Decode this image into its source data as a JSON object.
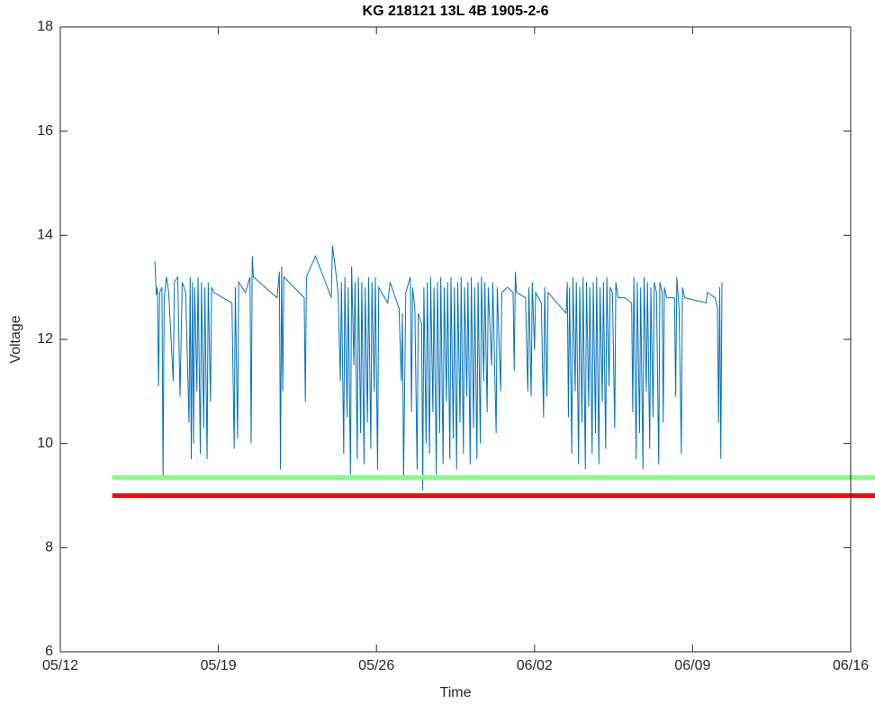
{
  "chart_data": {
    "type": "line",
    "title": "KG 218121 13L 4B 1905-2-6",
    "xlabel": "Time",
    "ylabel": "Voltage",
    "xlim": [
      0,
      35
    ],
    "xticks": [
      {
        "value": 0,
        "label": "05/12"
      },
      {
        "value": 7,
        "label": "05/19"
      },
      {
        "value": 14,
        "label": "05/26"
      },
      {
        "value": 21,
        "label": "06/02"
      },
      {
        "value": 28,
        "label": "06/09"
      },
      {
        "value": 35,
        "label": "06/16"
      }
    ],
    "ylim": [
      6,
      18
    ],
    "yticks": [
      6,
      8,
      10,
      12,
      14,
      16,
      18
    ],
    "series": [
      {
        "color": "#0072bd",
        "width": 1,
        "x": [
          4.19,
          4.25,
          4.3,
          4.35,
          4.4,
          4.5,
          4.55,
          4.6,
          4.7,
          4.8,
          5.0,
          5.05,
          5.2,
          5.3,
          5.4,
          5.55,
          5.7,
          5.75,
          5.8,
          5.85,
          5.9,
          5.95,
          6.05,
          6.1,
          6.2,
          6.25,
          6.35,
          6.4,
          6.5,
          6.55,
          6.65,
          6.7,
          6.8,
          7.6,
          7.7,
          7.75,
          7.85,
          7.9,
          8.2,
          8.4,
          8.45,
          8.5,
          8.55,
          9.6,
          9.7,
          9.75,
          9.8,
          9.85,
          9.9,
          10.8,
          10.85,
          10.9,
          11.3,
          12.0,
          12.05,
          12.2,
          12.3,
          12.4,
          12.45,
          12.55,
          12.6,
          12.7,
          12.75,
          12.85,
          12.9,
          13.0,
          13.05,
          13.15,
          13.2,
          13.3,
          13.35,
          13.45,
          13.5,
          13.6,
          13.65,
          13.75,
          13.8,
          13.9,
          13.95,
          14.05,
          14.1,
          14.5,
          14.6,
          15.0,
          15.1,
          15.15,
          15.2,
          15.3,
          15.5,
          15.55,
          15.6,
          15.7,
          15.8,
          15.85,
          16.0,
          16.05,
          16.1,
          16.2,
          16.25,
          16.35,
          16.4,
          16.5,
          16.55,
          16.65,
          16.7,
          16.8,
          16.85,
          16.95,
          17.0,
          17.1,
          17.15,
          17.25,
          17.3,
          17.4,
          17.45,
          17.55,
          17.6,
          17.7,
          17.75,
          17.85,
          17.9,
          18.0,
          18.05,
          18.15,
          18.2,
          18.3,
          18.35,
          18.45,
          18.5,
          18.6,
          18.65,
          18.75,
          18.8,
          18.9,
          18.95,
          19.1,
          19.15,
          19.3,
          19.35,
          19.5,
          19.55,
          19.8,
          20.05,
          20.1,
          20.15,
          20.2,
          20.6,
          20.7,
          20.75,
          20.85,
          20.9,
          21.0,
          21.05,
          21.3,
          21.4,
          21.45,
          21.55,
          21.6,
          21.8,
          22.4,
          22.45,
          22.5,
          22.55,
          22.65,
          22.7,
          22.8,
          22.85,
          22.95,
          23.0,
          23.1,
          23.15,
          23.25,
          23.3,
          23.4,
          23.45,
          23.55,
          23.6,
          23.7,
          23.75,
          23.85,
          23.9,
          24.0,
          24.05,
          24.15,
          24.2,
          24.3,
          24.35,
          24.45,
          24.55,
          24.6,
          24.7,
          25.0,
          25.3,
          25.35,
          25.4,
          25.5,
          25.55,
          25.65,
          25.7,
          25.8,
          25.85,
          25.95,
          26.0,
          26.1,
          26.15,
          26.25,
          26.3,
          26.4,
          26.5,
          26.55,
          26.65,
          26.7,
          26.75,
          26.85,
          27.2,
          27.25,
          27.3,
          27.4,
          27.5,
          27.55,
          27.65,
          28.6,
          28.65,
          29.0,
          29.1,
          29.15,
          29.2,
          29.25,
          29.3
        ],
        "values": [
          13.5,
          12.85,
          13.0,
          11.1,
          12.9,
          13.0,
          9.3,
          12.8,
          13.2,
          12.9,
          11.2,
          13.1,
          13.2,
          10.9,
          13.1,
          12.9,
          10.4,
          13.2,
          9.7,
          13.1,
          10.0,
          13.0,
          11.0,
          13.2,
          9.8,
          13.1,
          10.3,
          13.0,
          9.7,
          13.1,
          10.8,
          13.0,
          12.9,
          12.7,
          9.9,
          13.0,
          10.1,
          13.1,
          12.9,
          13.2,
          10.0,
          13.6,
          13.2,
          12.8,
          13.3,
          9.5,
          13.4,
          11.0,
          13.2,
          12.8,
          10.8,
          13.2,
          13.6,
          12.8,
          13.8,
          13.3,
          12.9,
          11.2,
          13.1,
          9.8,
          13.2,
          10.5,
          13.0,
          9.4,
          13.4,
          11.5,
          13.1,
          9.7,
          13.2,
          10.2,
          13.1,
          9.6,
          13.0,
          10.4,
          13.2,
          9.9,
          13.1,
          11.0,
          13.2,
          9.5,
          13.0,
          12.7,
          13.1,
          12.6,
          11.2,
          12.5,
          9.3,
          12.9,
          13.2,
          10.6,
          13.0,
          12.6,
          9.5,
          12.5,
          12.3,
          9.1,
          13.0,
          10.0,
          13.1,
          9.8,
          13.2,
          10.6,
          13.0,
          9.4,
          13.1,
          10.2,
          13.2,
          9.6,
          13.0,
          10.8,
          13.1,
          9.7,
          13.2,
          10.1,
          13.0,
          9.5,
          13.1,
          10.4,
          13.2,
          9.8,
          13.0,
          10.9,
          13.1,
          9.6,
          13.2,
          10.3,
          13.0,
          9.7,
          13.1,
          10.0,
          13.2,
          11.2,
          13.1,
          10.6,
          13.0,
          11.5,
          13.1,
          10.2,
          13.0,
          11.0,
          12.9,
          13.0,
          12.9,
          11.4,
          13.3,
          12.9,
          12.8,
          11.0,
          13.0,
          10.9,
          13.1,
          11.8,
          12.9,
          12.7,
          10.5,
          13.0,
          10.9,
          12.9,
          12.8,
          12.5,
          13.1,
          10.5,
          13.0,
          9.8,
          13.2,
          11.0,
          13.1,
          9.6,
          13.0,
          10.4,
          13.2,
          9.5,
          13.1,
          10.7,
          13.0,
          9.8,
          13.1,
          10.2,
          13.2,
          9.6,
          13.0,
          10.8,
          13.1,
          9.9,
          13.2,
          11.1,
          13.0,
          12.9,
          10.3,
          13.1,
          12.8,
          12.8,
          12.7,
          10.6,
          13.2,
          9.7,
          13.1,
          10.2,
          13.0,
          9.5,
          13.2,
          11.0,
          13.1,
          9.9,
          13.0,
          10.5,
          13.1,
          12.9,
          9.6,
          13.1,
          12.9,
          10.4,
          13.0,
          12.8,
          12.8,
          10.9,
          13.2,
          12.6,
          9.8,
          13.0,
          12.8,
          12.7,
          12.9,
          12.8,
          12.6,
          10.4,
          13.0,
          9.7,
          13.1
        ]
      },
      {
        "color": "#80ff80",
        "width": 5,
        "x": [
          2.3,
          36.1
        ],
        "values": [
          9.35,
          9.35
        ]
      },
      {
        "color": "#ff0000",
        "width": 5,
        "x": [
          2.3,
          36.1
        ],
        "values": [
          9.0,
          9.0
        ]
      }
    ]
  }
}
